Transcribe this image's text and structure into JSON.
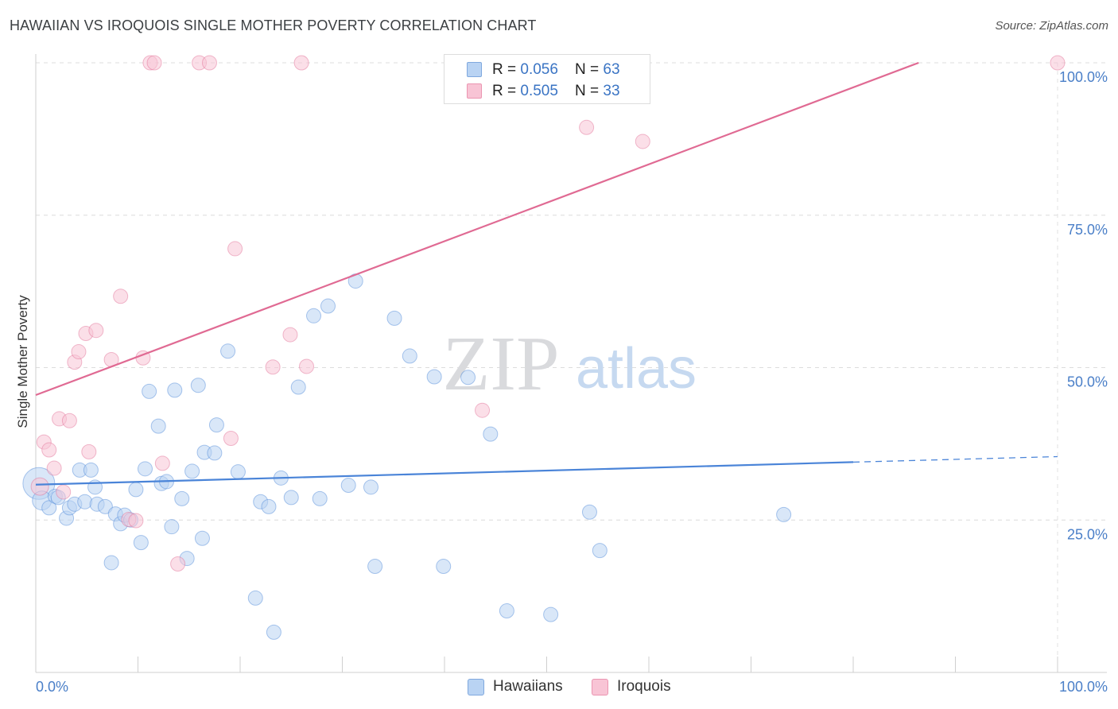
{
  "title": "HAWAIIAN VS IROQUOIS SINGLE MOTHER POVERTY CORRELATION CHART",
  "source": "Source: ZipAtlas.com",
  "watermark": {
    "zip": "ZIP",
    "atlas": "atlas"
  },
  "stats": [
    {
      "r_label": "R = ",
      "r_value": "0.056",
      "n_label": "N = ",
      "n_value": "63",
      "color": "#b9d3f3"
    },
    {
      "r_label": "R = ",
      "r_value": "0.505",
      "n_label": "N = ",
      "n_value": "33",
      "color": "#f8c4d5"
    }
  ],
  "legend": [
    {
      "label": "Hawaiians",
      "color": "#b9d3f3"
    },
    {
      "label": "Iroquois",
      "color": "#f8c4d5"
    }
  ],
  "chart_data": {
    "type": "scatter",
    "title": "HAWAIIAN VS IROQUOIS SINGLE MOTHER POVERTY CORRELATION CHART",
    "xlabel": "",
    "ylabel": "Single Mother Poverty",
    "xlim": [
      0,
      100
    ],
    "ylim": [
      0,
      100
    ],
    "x_tick_labels": [
      "0.0%",
      "100.0%"
    ],
    "y_ticks": [
      {
        "value": 25,
        "label": "25.0%"
      },
      {
        "value": 50,
        "label": "50.0%"
      },
      {
        "value": 75,
        "label": "75.0%"
      },
      {
        "value": 100,
        "label": "100.0%"
      }
    ],
    "grid": true,
    "series": [
      {
        "name": "Hawaiians",
        "color": "#4a84d8",
        "fill": "#b9d3f3",
        "trend": {
          "x0": 0,
          "y0": 30.8,
          "x1": 80,
          "y1": 34.5,
          "dash_to": 100,
          "dash_y": 35.4
        },
        "points": [
          [
            0.3,
            31.0,
            20
          ],
          [
            0.6,
            28.2,
            12
          ],
          [
            1.3,
            27.0,
            9
          ],
          [
            1.9,
            28.9,
            9
          ],
          [
            2.2,
            28.7,
            9
          ],
          [
            3.0,
            25.3,
            9
          ],
          [
            3.3,
            27.0,
            9
          ],
          [
            3.8,
            27.6,
            9
          ],
          [
            4.3,
            33.2,
            9
          ],
          [
            4.8,
            28.0,
            9
          ],
          [
            5.4,
            33.2,
            9
          ],
          [
            5.8,
            30.4,
            9
          ],
          [
            6.0,
            27.6,
            9
          ],
          [
            6.8,
            27.2,
            9
          ],
          [
            7.4,
            18.0,
            9
          ],
          [
            7.8,
            26.0,
            9
          ],
          [
            8.3,
            24.4,
            9
          ],
          [
            8.7,
            25.8,
            9
          ],
          [
            9.3,
            25.0,
            9
          ],
          [
            9.8,
            30.0,
            9
          ],
          [
            10.3,
            21.3,
            9
          ],
          [
            10.7,
            33.4,
            9
          ],
          [
            11.1,
            46.1,
            9
          ],
          [
            12.0,
            40.4,
            9
          ],
          [
            12.3,
            31.0,
            9
          ],
          [
            12.8,
            31.3,
            9
          ],
          [
            13.3,
            23.9,
            9
          ],
          [
            13.6,
            46.3,
            9
          ],
          [
            14.3,
            28.5,
            9
          ],
          [
            14.8,
            18.7,
            9
          ],
          [
            15.3,
            33.0,
            9
          ],
          [
            15.9,
            47.1,
            9
          ],
          [
            16.3,
            22.0,
            9
          ],
          [
            16.5,
            36.1,
            9
          ],
          [
            17.5,
            36.0,
            9
          ],
          [
            17.7,
            40.6,
            9
          ],
          [
            18.8,
            52.7,
            9
          ],
          [
            19.8,
            32.9,
            9
          ],
          [
            21.5,
            12.2,
            9
          ],
          [
            22.0,
            28.0,
            9
          ],
          [
            22.8,
            27.2,
            9
          ],
          [
            23.3,
            6.6,
            9
          ],
          [
            24.0,
            31.9,
            9
          ],
          [
            25.0,
            28.7,
            9
          ],
          [
            25.7,
            46.8,
            9
          ],
          [
            27.2,
            58.5,
            9
          ],
          [
            27.8,
            28.5,
            9
          ],
          [
            28.6,
            60.1,
            9
          ],
          [
            30.6,
            30.7,
            9
          ],
          [
            31.3,
            64.2,
            9
          ],
          [
            32.8,
            30.4,
            9
          ],
          [
            33.2,
            17.4,
            9
          ],
          [
            35.1,
            58.1,
            9
          ],
          [
            36.6,
            51.9,
            9
          ],
          [
            39.0,
            48.5,
            9
          ],
          [
            39.9,
            17.4,
            9
          ],
          [
            42.3,
            48.4,
            9
          ],
          [
            44.5,
            39.1,
            9
          ],
          [
            46.1,
            10.1,
            9
          ],
          [
            50.4,
            9.5,
            9
          ],
          [
            54.2,
            26.3,
            9
          ],
          [
            55.2,
            20.0,
            9
          ],
          [
            73.2,
            25.9,
            9
          ]
        ]
      },
      {
        "name": "Iroquois",
        "color": "#e06a93",
        "fill": "#f8c4d5",
        "trend": {
          "x0": 0,
          "y0": 45.5,
          "x1": 86.4,
          "y1": 100
        },
        "points": [
          [
            0.4,
            30.5,
            11
          ],
          [
            0.8,
            37.8,
            9
          ],
          [
            1.3,
            36.5,
            9
          ],
          [
            1.8,
            33.5,
            9
          ],
          [
            2.3,
            41.6,
            9
          ],
          [
            2.7,
            29.6,
            9
          ],
          [
            3.3,
            41.3,
            9
          ],
          [
            3.8,
            50.9,
            9
          ],
          [
            4.2,
            52.6,
            9
          ],
          [
            4.9,
            55.6,
            9
          ],
          [
            5.2,
            36.2,
            9
          ],
          [
            5.9,
            56.1,
            9
          ],
          [
            7.4,
            51.3,
            9
          ],
          [
            8.3,
            61.7,
            9
          ],
          [
            9.1,
            25.1,
            9
          ],
          [
            9.8,
            24.9,
            9
          ],
          [
            10.5,
            51.6,
            9
          ],
          [
            11.2,
            100.0,
            9
          ],
          [
            11.6,
            100.0,
            9
          ],
          [
            12.4,
            34.3,
            9
          ],
          [
            13.9,
            17.8,
            9
          ],
          [
            16.0,
            100.0,
            9
          ],
          [
            17.0,
            100.0,
            9
          ],
          [
            19.1,
            38.4,
            9
          ],
          [
            19.5,
            69.5,
            9
          ],
          [
            23.2,
            50.1,
            9
          ],
          [
            24.9,
            55.4,
            9
          ],
          [
            26.0,
            100.0,
            9
          ],
          [
            26.5,
            50.2,
            9
          ],
          [
            43.7,
            43.0,
            9
          ],
          [
            53.9,
            89.4,
            9
          ],
          [
            59.4,
            87.1,
            9
          ],
          [
            100.0,
            100.0,
            9
          ]
        ]
      }
    ]
  }
}
